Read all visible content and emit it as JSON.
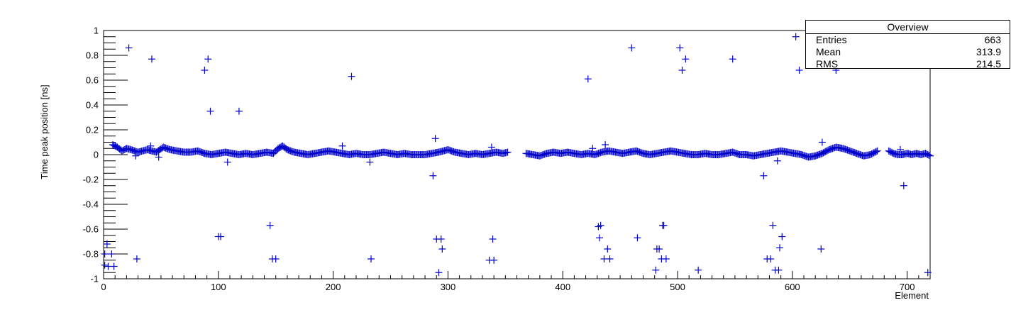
{
  "chart_data": {
    "type": "scatter",
    "marker": "cross",
    "color": "#0000cc",
    "xlabel": "Element",
    "ylabel": "Time peak position [ns]",
    "xlim": [
      0,
      720
    ],
    "ylim": [
      -1,
      1
    ],
    "x_ticks": [
      0,
      100,
      200,
      300,
      400,
      500,
      600,
      700
    ],
    "x_tick_labels": [
      "0",
      "100",
      "200",
      "300",
      "400",
      "500",
      "600",
      "700"
    ],
    "y_ticks": [
      -1,
      -0.8,
      -0.6,
      -0.4,
      -0.2,
      0,
      0.2,
      0.4,
      0.6,
      0.8,
      1
    ],
    "y_tick_labels": [
      "-1",
      "-0.8",
      "-0.6",
      "-0.4",
      "-0.2",
      "0",
      "0.2",
      "0.4",
      "0.6",
      "0.8",
      "1"
    ],
    "grid": false,
    "stats_box": {
      "title": "Overview",
      "rows": [
        {
          "label": "Entries",
          "value": "663"
        },
        {
          "label": "Mean",
          "value": "313.9"
        },
        {
          "label": "RMS",
          "value": "214.5"
        }
      ]
    },
    "baseline_segments": [
      {
        "x": [
          8,
          12,
          16,
          20,
          24,
          30,
          38,
          46,
          52,
          58,
          64,
          70,
          76,
          82,
          88,
          94,
          100,
          106,
          112,
          118,
          124,
          130,
          136,
          142,
          148,
          152,
          156,
          160,
          166,
          172,
          178,
          184,
          190,
          196,
          202,
          208,
          214,
          220,
          226,
          232,
          238,
          244,
          250,
          256,
          262,
          268,
          274,
          280,
          286,
          292,
          296,
          300,
          306,
          312,
          318,
          324,
          330,
          336,
          342,
          348,
          352
        ],
        "y": [
          0.08,
          0.06,
          0.03,
          0.05,
          0.04,
          0.02,
          0.04,
          0.02,
          0.06,
          0.04,
          0.03,
          0.02,
          0.02,
          0.03,
          0.01,
          0.0,
          0.01,
          0.02,
          0.01,
          0.0,
          0.01,
          0.0,
          0.01,
          0.02,
          0.01,
          0.05,
          0.07,
          0.04,
          0.02,
          0.01,
          0.0,
          0.01,
          0.02,
          0.03,
          0.02,
          0.01,
          0.0,
          0.01,
          0.0,
          0.0,
          0.01,
          0.02,
          0.01,
          0.0,
          0.01,
          0.0,
          0.0,
          0.0,
          0.01,
          0.02,
          0.03,
          0.04,
          0.02,
          0.01,
          0.0,
          0.01,
          0.0,
          0.01,
          0.02,
          0.01,
          0.02
        ]
      },
      {
        "x": [
          368,
          374,
          380,
          386,
          392,
          398,
          404,
          410,
          416,
          422,
          428,
          434,
          440,
          446,
          452,
          458,
          464,
          470,
          476,
          482,
          488,
          494,
          500,
          506,
          512,
          518,
          524,
          530,
          536,
          542,
          548,
          554,
          560,
          566,
          572,
          578,
          584,
          590,
          596,
          602,
          608,
          614,
          620,
          626,
          632,
          638,
          644,
          650,
          656,
          662,
          668,
          674
        ],
        "y": [
          0.01,
          0.0,
          -0.01,
          0.01,
          0.02,
          0.01,
          0.02,
          0.01,
          0.0,
          0.01,
          0.0,
          0.02,
          0.03,
          0.02,
          0.01,
          0.02,
          0.03,
          0.01,
          0.0,
          0.01,
          0.02,
          0.03,
          0.02,
          0.01,
          0.0,
          0.0,
          0.01,
          0.0,
          0.0,
          0.01,
          0.02,
          0.0,
          0.0,
          -0.01,
          0.0,
          0.01,
          0.02,
          0.03,
          0.02,
          0.01,
          0.0,
          -0.02,
          -0.01,
          0.01,
          0.04,
          0.06,
          0.05,
          0.03,
          0.01,
          -0.01,
          0.0,
          0.03
        ]
      },
      {
        "x": [
          684,
          688,
          692,
          696,
          700,
          704,
          708,
          712,
          716,
          720
        ],
        "y": [
          0.03,
          0.01,
          0.0,
          0.0,
          0.01,
          0.0,
          0.01,
          0.0,
          0.01,
          -0.01
        ]
      }
    ],
    "outliers": [
      {
        "x": 1,
        "y": -0.8
      },
      {
        "x": 1,
        "y": -0.89
      },
      {
        "x": 3,
        "y": -0.72
      },
      {
        "x": 4,
        "y": -0.9
      },
      {
        "x": 7,
        "y": -0.8
      },
      {
        "x": 9,
        "y": -0.9
      },
      {
        "x": 22,
        "y": 0.86
      },
      {
        "x": 28,
        "y": -0.01
      },
      {
        "x": 29,
        "y": -0.84
      },
      {
        "x": 41,
        "y": 0.07
      },
      {
        "x": 42,
        "y": 0.77
      },
      {
        "x": 48,
        "y": -0.02
      },
      {
        "x": 88,
        "y": 0.68
      },
      {
        "x": 91,
        "y": 0.77
      },
      {
        "x": 93,
        "y": 0.35
      },
      {
        "x": 100,
        "y": -0.66
      },
      {
        "x": 102,
        "y": -0.66
      },
      {
        "x": 108,
        "y": -0.06
      },
      {
        "x": 118,
        "y": 0.35
      },
      {
        "x": 145,
        "y": -0.57
      },
      {
        "x": 147,
        "y": -0.84
      },
      {
        "x": 150,
        "y": -0.84
      },
      {
        "x": 208,
        "y": 0.07
      },
      {
        "x": 216,
        "y": 0.63
      },
      {
        "x": 232,
        "y": -0.06
      },
      {
        "x": 233,
        "y": -0.84
      },
      {
        "x": 287,
        "y": -0.17
      },
      {
        "x": 289,
        "y": 0.13
      },
      {
        "x": 290,
        "y": -0.68
      },
      {
        "x": 292,
        "y": -0.95
      },
      {
        "x": 294,
        "y": -0.68
      },
      {
        "x": 295,
        "y": -0.76
      },
      {
        "x": 336,
        "y": -0.85
      },
      {
        "x": 338,
        "y": 0.06
      },
      {
        "x": 339,
        "y": -0.68
      },
      {
        "x": 340,
        "y": -0.85
      },
      {
        "x": 422,
        "y": 0.61
      },
      {
        "x": 426,
        "y": 0.05
      },
      {
        "x": 431,
        "y": -0.58
      },
      {
        "x": 432,
        "y": -0.67
      },
      {
        "x": 433,
        "y": -0.57
      },
      {
        "x": 436,
        "y": -0.84
      },
      {
        "x": 437,
        "y": 0.08
      },
      {
        "x": 439,
        "y": -0.76
      },
      {
        "x": 441,
        "y": -0.84
      },
      {
        "x": 460,
        "y": 0.86
      },
      {
        "x": 465,
        "y": -0.67
      },
      {
        "x": 481,
        "y": -0.93
      },
      {
        "x": 482,
        "y": -0.76
      },
      {
        "x": 484,
        "y": -0.76
      },
      {
        "x": 486,
        "y": -0.84
      },
      {
        "x": 487,
        "y": -0.57
      },
      {
        "x": 488,
        "y": -0.57
      },
      {
        "x": 490,
        "y": -0.84
      },
      {
        "x": 502,
        "y": 0.86
      },
      {
        "x": 504,
        "y": 0.68
      },
      {
        "x": 507,
        "y": 0.77
      },
      {
        "x": 518,
        "y": -0.93
      },
      {
        "x": 548,
        "y": 0.77
      },
      {
        "x": 575,
        "y": -0.17
      },
      {
        "x": 578,
        "y": -0.84
      },
      {
        "x": 581,
        "y": -0.84
      },
      {
        "x": 583,
        "y": -0.57
      },
      {
        "x": 585,
        "y": -0.93
      },
      {
        "x": 587,
        "y": -0.05
      },
      {
        "x": 588,
        "y": -0.93
      },
      {
        "x": 589,
        "y": -0.75
      },
      {
        "x": 591,
        "y": -0.66
      },
      {
        "x": 603,
        "y": 0.95
      },
      {
        "x": 606,
        "y": 0.68
      },
      {
        "x": 625,
        "y": -0.76
      },
      {
        "x": 626,
        "y": 0.1
      },
      {
        "x": 638,
        "y": 0.68
      },
      {
        "x": 694,
        "y": 0.04
      },
      {
        "x": 697,
        "y": -0.25
      },
      {
        "x": 718,
        "y": -0.95
      }
    ]
  }
}
